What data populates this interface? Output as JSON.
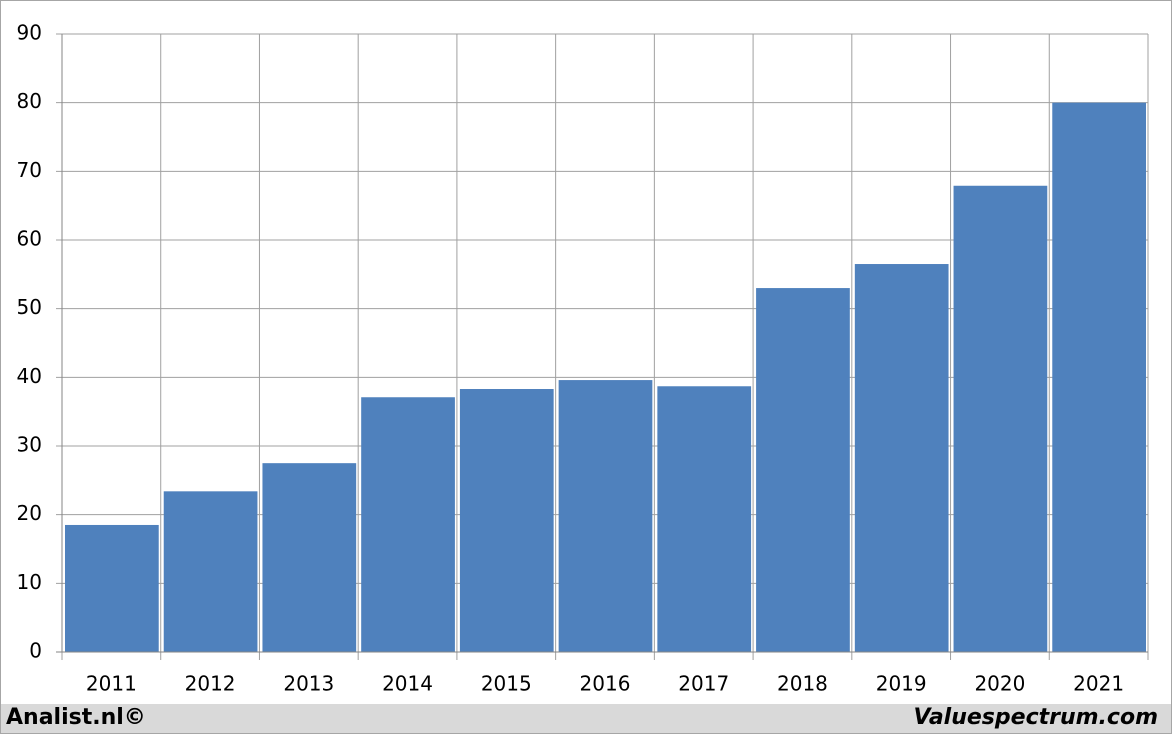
{
  "chart_data": {
    "type": "bar",
    "categories": [
      "2011",
      "2012",
      "2013",
      "2014",
      "2015",
      "2016",
      "2017",
      "2018",
      "2019",
      "2020",
      "2021"
    ],
    "values": [
      18.5,
      23.4,
      27.5,
      37.1,
      38.3,
      39.6,
      38.7,
      53.0,
      56.5,
      67.9,
      80.0
    ],
    "color": "#4f81bd",
    "ylim": [
      0,
      90
    ],
    "yticks": [
      0,
      10,
      20,
      30,
      40,
      50,
      60,
      70,
      80,
      90
    ],
    "grid": true,
    "footer_left": "Analist.nl©",
    "footer_right": "Valuespectrum.com"
  }
}
